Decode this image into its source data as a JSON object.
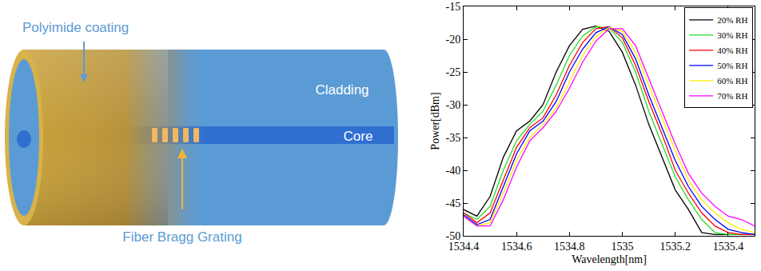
{
  "diagram": {
    "labels": {
      "coating": "Polyimide coating",
      "cladding": "Cladding",
      "core": "Core",
      "grating": "Fiber Bragg Grating"
    }
  },
  "chart_data": {
    "type": "line",
    "x_label": "Wavelength[nm]",
    "y_label": "Power[dBm]",
    "x": [
      1534.4,
      1534.45,
      1534.5,
      1534.55,
      1534.6,
      1534.65,
      1534.7,
      1534.75,
      1534.8,
      1534.85,
      1534.9,
      1534.95,
      1535.0,
      1535.05,
      1535.1,
      1535.15,
      1535.2,
      1535.25,
      1535.3,
      1535.35,
      1535.4,
      1535.45,
      1535.5
    ],
    "series": [
      {
        "name": "20% RH",
        "color": "#000000",
        "values": [
          -46,
          -47,
          -44,
          -38,
          -34,
          -32.5,
          -30,
          -25,
          -21,
          -18.5,
          -18,
          -18.8,
          -22,
          -27,
          -33,
          -38,
          -43,
          -46,
          -49.5,
          -49.8,
          -49.8,
          -49.8,
          -49.8
        ]
      },
      {
        "name": "30% RH",
        "color": "#22dd22",
        "values": [
          -46.5,
          -47.5,
          -45.5,
          -40,
          -35.5,
          -33,
          -31,
          -27,
          -22.5,
          -19.5,
          -18.1,
          -18.3,
          -20.5,
          -25,
          -31,
          -36,
          -41,
          -44.5,
          -47.5,
          -49.5,
          -49.8,
          -49.8,
          -49.8
        ]
      },
      {
        "name": "40% RH",
        "color": "#ff0000",
        "values": [
          -46.5,
          -48,
          -46.5,
          -41.5,
          -36.5,
          -33.5,
          -32,
          -28.5,
          -24,
          -20.5,
          -18.4,
          -18.1,
          -19.8,
          -24,
          -29.5,
          -34.5,
          -40,
          -43.5,
          -46.5,
          -48.5,
          -49.5,
          -49.8,
          -49.8
        ]
      },
      {
        "name": "50% RH",
        "color": "#0000ff",
        "values": [
          -46.8,
          -48.3,
          -47.5,
          -42.5,
          -37.5,
          -34,
          -32.5,
          -29.5,
          -25,
          -21.5,
          -19,
          -18.1,
          -19.3,
          -23,
          -28.5,
          -33.5,
          -38.5,
          -42.5,
          -45.5,
          -47.5,
          -49,
          -49.5,
          -49.8
        ]
      },
      {
        "name": "60% RH",
        "color": "#ffee00",
        "values": [
          -47,
          -48.5,
          -48,
          -43.5,
          -38.5,
          -35,
          -33,
          -30.5,
          -26.5,
          -22.5,
          -19.6,
          -18.2,
          -18.8,
          -22,
          -27,
          -32,
          -37,
          -41.5,
          -44.5,
          -46.5,
          -48,
          -49,
          -49.5
        ]
      },
      {
        "name": "70% RH",
        "color": "#ff00ff",
        "values": [
          -47,
          -48.5,
          -48.5,
          -44.5,
          -39.5,
          -35.5,
          -33.5,
          -31,
          -27.5,
          -23.5,
          -20.3,
          -18.4,
          -18.4,
          -21,
          -26,
          -31,
          -36,
          -40.5,
          -43.5,
          -45.5,
          -47,
          -47.5,
          -48.5
        ]
      }
    ],
    "xlim": [
      1534.4,
      1535.5
    ],
    "ylim": [
      -50,
      -15
    ],
    "xticks": [
      1534.4,
      1534.6,
      1534.8,
      1535,
      1535.2,
      1535.4
    ],
    "yticks": [
      -50,
      -45,
      -40,
      -35,
      -30,
      -25,
      -20,
      -15
    ],
    "grid": false,
    "legend": "top-right"
  }
}
